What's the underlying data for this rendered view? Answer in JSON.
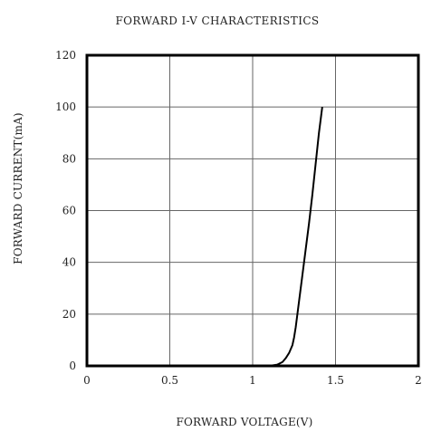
{
  "chart_data": {
    "type": "line",
    "title": "FORWARD I-V CHARACTERISTICS",
    "xlabel": "FORWARD VOLTAGE(V)",
    "ylabel": "FORWARD CURRENT(mA)",
    "xlim": [
      0,
      2
    ],
    "ylim": [
      0,
      120
    ],
    "xticks": [
      0,
      0.5,
      1,
      1.5,
      2
    ],
    "yticks": [
      0,
      20,
      40,
      60,
      80,
      100,
      120
    ],
    "xtick_labels": [
      "0",
      "0.5",
      "1",
      "1.5",
      "2"
    ],
    "ytick_labels": [
      "0",
      "20",
      "40",
      "60",
      "80",
      "100",
      "120"
    ],
    "grid": true,
    "series": [
      {
        "x": [
          1.1,
          1.15,
          1.18,
          1.2,
          1.22,
          1.24,
          1.25,
          1.26,
          1.28,
          1.3,
          1.32,
          1.34,
          1.36,
          1.38,
          1.4,
          1.42
        ],
        "y": [
          0,
          0.5,
          1.5,
          3,
          5,
          8,
          11,
          15,
          25,
          35,
          45,
          55,
          66,
          78,
          90,
          100
        ]
      }
    ],
    "line_color": "#000000"
  }
}
